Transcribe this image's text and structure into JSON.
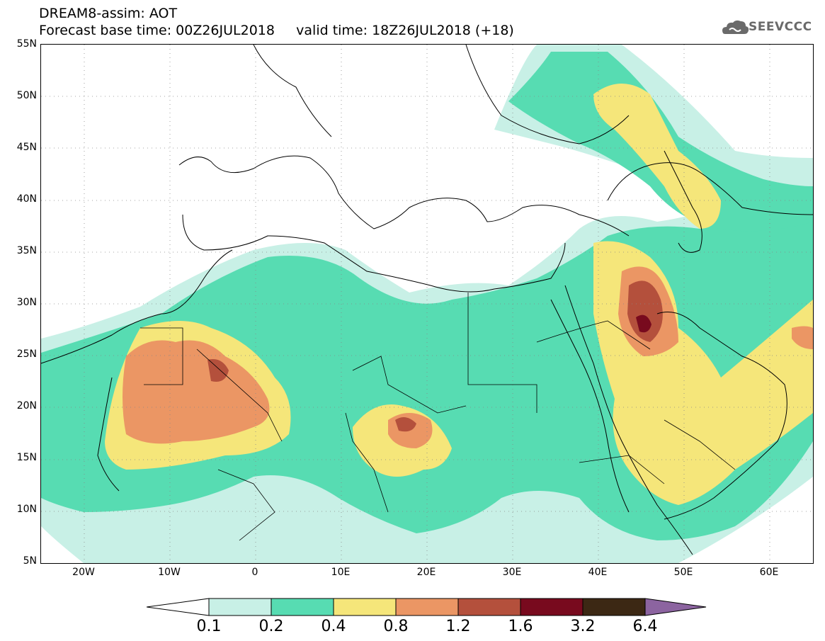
{
  "title": {
    "line1": "DREAM8-assim: AOT",
    "line2": "Forecast base time: 00Z26JUL2018     valid time: 18Z26JUL2018 (+18)"
  },
  "logo": {
    "text": "SEEVCCC",
    "icon": "cloud-icon"
  },
  "map": {
    "variable": "AOT",
    "lon_range": [
      -25,
      65
    ],
    "lat_range": [
      5,
      55
    ],
    "lat_labels": [
      "55N",
      "50N",
      "45N",
      "40N",
      "35N",
      "30N",
      "25N",
      "20N",
      "15N",
      "10N",
      "5N"
    ],
    "lon_labels": [
      "20W",
      "10W",
      "0",
      "10E",
      "20E",
      "30E",
      "40E",
      "50E",
      "60E"
    ],
    "grid": "dotted"
  },
  "colorbar": {
    "labels": [
      "0.1",
      "0.2",
      "0.4",
      "0.8",
      "1.2",
      "1.6",
      "3.2",
      "6.4"
    ],
    "colors": [
      "#ffffff",
      "#c8f0e6",
      "#57dcb2",
      "#f5e67a",
      "#eb9664",
      "#b4503c",
      "#780a1e",
      "#3c2814",
      "#8c64a0"
    ]
  }
}
